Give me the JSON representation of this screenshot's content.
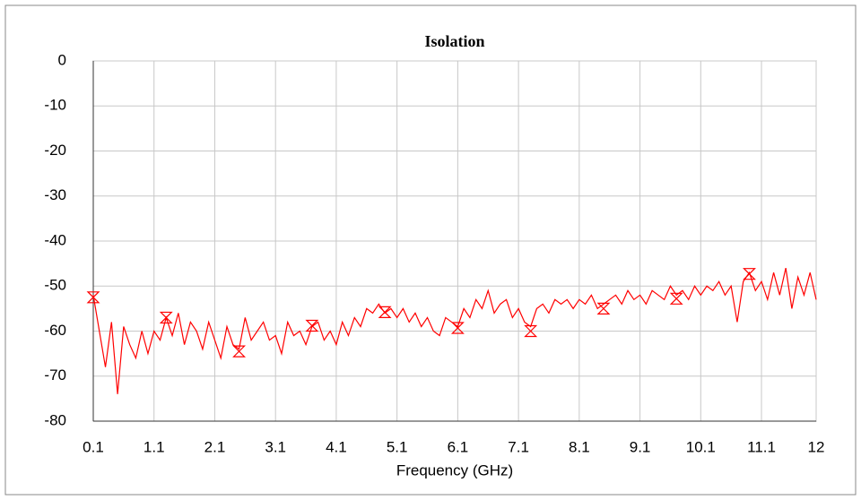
{
  "chart_data": {
    "type": "line",
    "title": "Isolation",
    "x_label": "Frequency (GHz)",
    "xlim": [
      0.1,
      12
    ],
    "ylim": [
      -80,
      0
    ],
    "xticks": [
      0.1,
      1.1,
      2.1,
      3.1,
      4.1,
      5.1,
      6.1,
      7.1,
      8.1,
      9.1,
      10.1,
      11.1,
      12
    ],
    "yticks": [
      0,
      -10,
      -20,
      -30,
      -40,
      -50,
      -60,
      -70,
      -80
    ],
    "grid": true,
    "series": [
      {
        "color": "#ff0000",
        "x": [
          0.1,
          0.2,
          0.3,
          0.4,
          0.5,
          0.6,
          0.7,
          0.8,
          0.9,
          1.0,
          1.1,
          1.2,
          1.3,
          1.4,
          1.5,
          1.6,
          1.7,
          1.8,
          1.9,
          2.0,
          2.1,
          2.2,
          2.3,
          2.4,
          2.5,
          2.6,
          2.7,
          2.8,
          2.9,
          3.0,
          3.1,
          3.2,
          3.3,
          3.4,
          3.5,
          3.6,
          3.7,
          3.8,
          3.9,
          4.0,
          4.1,
          4.2,
          4.3,
          4.4,
          4.5,
          4.6,
          4.7,
          4.8,
          4.9,
          5.0,
          5.1,
          5.2,
          5.3,
          5.4,
          5.5,
          5.6,
          5.7,
          5.8,
          5.9,
          6.0,
          6.1,
          6.2,
          6.3,
          6.4,
          6.5,
          6.6,
          6.7,
          6.8,
          6.9,
          7.0,
          7.1,
          7.2,
          7.3,
          7.4,
          7.5,
          7.6,
          7.7,
          7.8,
          7.9,
          8.0,
          8.1,
          8.2,
          8.3,
          8.4,
          8.5,
          8.6,
          8.7,
          8.8,
          8.9,
          9.0,
          9.1,
          9.2,
          9.3,
          9.4,
          9.5,
          9.6,
          9.7,
          9.8,
          9.9,
          10.0,
          10.1,
          10.2,
          10.3,
          10.4,
          10.5,
          10.6,
          10.7,
          10.8,
          10.9,
          11.0,
          11.1,
          11.2,
          11.3,
          11.4,
          11.5,
          11.6,
          11.7,
          11.8,
          11.9,
          12.0
        ],
        "values": [
          -52,
          -60,
          -68,
          -58,
          -74,
          -59,
          -63,
          -66,
          -60,
          -65,
          -60,
          -62,
          -57,
          -61,
          -56,
          -63,
          -58,
          -60,
          -64,
          -58,
          -62,
          -66,
          -59,
          -63,
          -64,
          -57,
          -62,
          -60,
          -58,
          -62,
          -61,
          -65,
          -58,
          -61,
          -60,
          -63,
          -59,
          -58,
          -62,
          -60,
          -63,
          -58,
          -61,
          -57,
          -59,
          -55,
          -56,
          -54,
          -56,
          -55,
          -57,
          -55,
          -58,
          -56,
          -59,
          -57,
          -60,
          -61,
          -57,
          -58,
          -59,
          -55,
          -57,
          -53,
          -55,
          -51,
          -56,
          -54,
          -53,
          -57,
          -55,
          -58,
          -59,
          -55,
          -54,
          -56,
          -53,
          -54,
          -53,
          -55,
          -53,
          -54,
          -52,
          -55,
          -54,
          -53,
          -52,
          -54,
          -51,
          -53,
          -52,
          -54,
          -51,
          -52,
          -53,
          -50,
          -52,
          -51,
          -53,
          -50,
          -52,
          -50,
          -51,
          -49,
          -52,
          -50,
          -58,
          -49,
          -47,
          -51,
          -49,
          -53,
          -47,
          -52,
          -46,
          -55,
          -48,
          -52,
          -47,
          -53
        ]
      },
      {
        "color": "#ff0000",
        "marker": true,
        "x": [
          0.1,
          1.3,
          2.5,
          3.7,
          4.9,
          6.1,
          7.3,
          8.5,
          9.7,
          10.9
        ],
        "values": [
          -52.5,
          -57,
          -64.5,
          -58.8,
          -55.8,
          -59.3,
          -60,
          -55,
          -52.8,
          -47.3
        ]
      }
    ]
  }
}
